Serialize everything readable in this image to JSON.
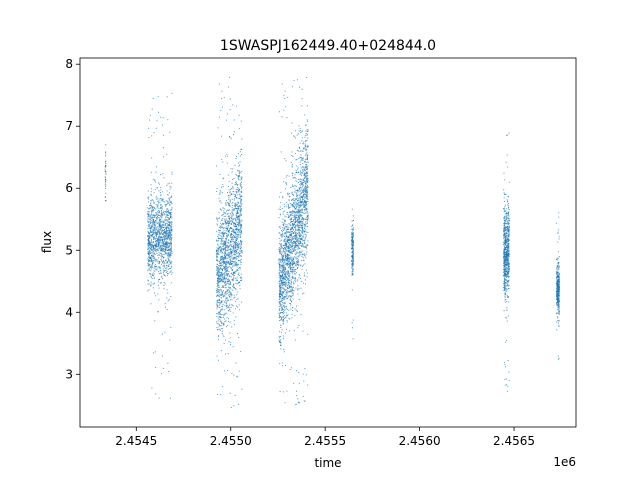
{
  "chart_data": {
    "type": "scatter",
    "title": "1SWASPJ162449.40+024844.0",
    "xlabel": "time",
    "ylabel": "flux",
    "x_offset_label": "1e6",
    "xlim": [
      2454202,
      2456828
    ],
    "ylim": [
      2.15,
      8.1
    ],
    "x_ticks": [
      2454500,
      2455000,
      2455500,
      2456000,
      2456500
    ],
    "x_tick_labels": [
      "2.4545",
      "2.4550",
      "2.4555",
      "2.4560",
      "2.4565"
    ],
    "y_ticks": [
      3,
      4,
      5,
      6,
      7,
      8
    ],
    "y_tick_labels": [
      "3",
      "4",
      "5",
      "6",
      "7",
      "8"
    ],
    "grid": false,
    "point_color": "#1f77b4",
    "clusters": [
      {
        "x_start": 2454335,
        "x_end": 2454340,
        "y_center": 6.2,
        "y_spread": 0.25,
        "y_min": 5.8,
        "y_max": 6.7,
        "trend": 0,
        "count": 40
      },
      {
        "x_start": 2454560,
        "x_end": 2454690,
        "y_center": 5.2,
        "y_spread": 0.35,
        "y_min": 2.6,
        "y_max": 7.6,
        "trend": 0.1,
        "count": 1300
      },
      {
        "x_start": 2454925,
        "x_end": 2455060,
        "y_center": 5.0,
        "y_spread": 0.5,
        "y_min": 2.4,
        "y_max": 7.8,
        "trend": 0.9,
        "count": 1600
      },
      {
        "x_start": 2455255,
        "x_end": 2455410,
        "y_center": 5.2,
        "y_spread": 0.5,
        "y_min": 2.45,
        "y_max": 7.8,
        "trend": 1.6,
        "count": 2000
      },
      {
        "x_start": 2455640,
        "x_end": 2455650,
        "y_center": 5.0,
        "y_spread": 0.2,
        "y_min": 3.3,
        "y_max": 5.9,
        "trend": 0,
        "count": 180
      },
      {
        "x_start": 2456445,
        "x_end": 2456475,
        "y_center": 5.0,
        "y_spread": 0.35,
        "y_min": 2.6,
        "y_max": 6.9,
        "trend": 0,
        "count": 700
      },
      {
        "x_start": 2456725,
        "x_end": 2456740,
        "y_center": 4.35,
        "y_spread": 0.2,
        "y_min": 3.2,
        "y_max": 5.7,
        "trend": 0,
        "count": 350
      }
    ]
  }
}
